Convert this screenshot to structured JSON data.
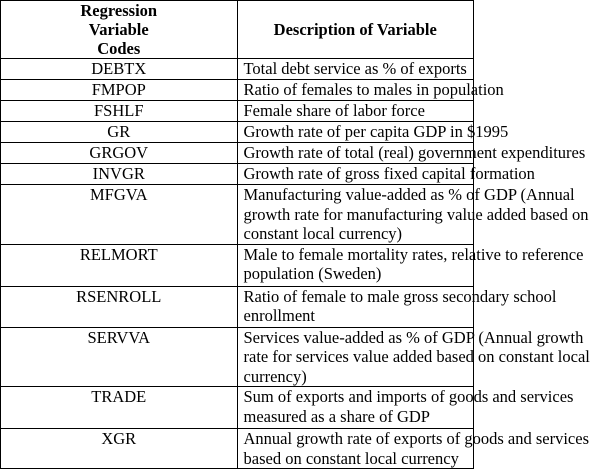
{
  "table": {
    "header": {
      "code": [
        "Regression",
        "Variable",
        "Codes"
      ],
      "description": "Description of Variable"
    },
    "rows": [
      {
        "code": "DEBTX",
        "description": [
          "Total debt service as % of exports"
        ]
      },
      {
        "code": "FMPOP",
        "description": [
          "Ratio of females to males in population"
        ]
      },
      {
        "code": "FSHLF",
        "description": [
          "Female share of labor force"
        ]
      },
      {
        "code": "GR",
        "description": [
          "Growth rate of per capita GDP in $1995"
        ]
      },
      {
        "code": "GRGOV",
        "description": [
          "Growth rate of total (real) government expenditures"
        ]
      },
      {
        "code": "INVGR",
        "description": [
          "Growth rate of gross fixed capital formation"
        ]
      },
      {
        "code": "MFGVA",
        "description": [
          "Manufacturing value-added as % of GDP (Annual",
          "growth rate for manufacturing value added based on",
          "constant local currency)"
        ]
      },
      {
        "code": "RELMORT",
        "description": [
          "Male to female mortality rates, relative to reference",
          "population (Sweden)"
        ]
      },
      {
        "code": "RSENROLL",
        "description": [
          "Ratio of female to male gross secondary school",
          "enrollment"
        ]
      },
      {
        "code": "SERVVA",
        "description": [
          "Services value-added as % of GDP (Annual growth",
          "rate for services value added based on constant local",
          "currency)"
        ]
      },
      {
        "code": "TRADE",
        "description": [
          "Sum of exports and imports of goods and services",
          "measured as a share of GDP"
        ]
      },
      {
        "code": "XGR",
        "description": [
          "Annual growth rate of exports of goods and services",
          "based on constant local currency"
        ]
      }
    ]
  }
}
